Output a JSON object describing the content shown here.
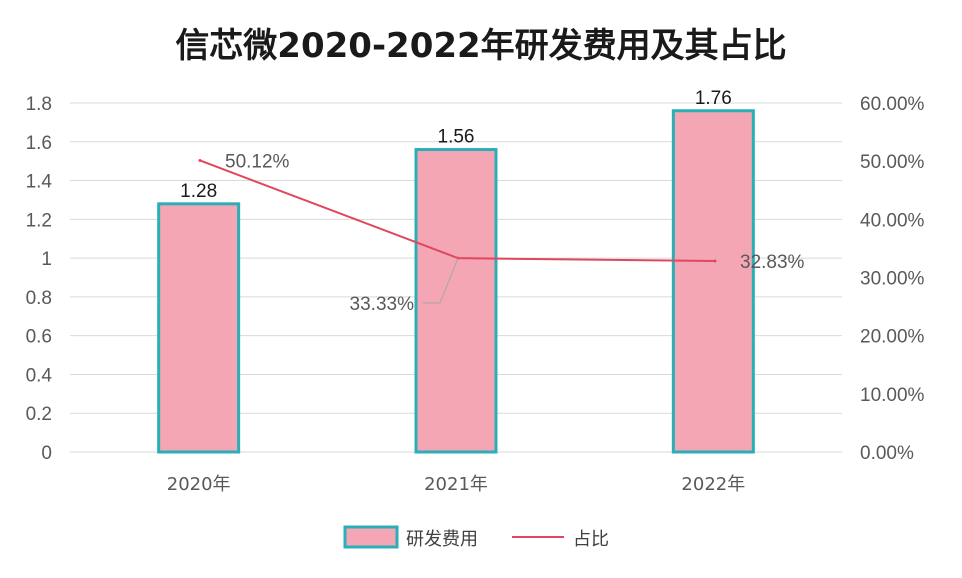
{
  "chart_data": {
    "type": "bar",
    "title": "信芯微2020-2022年研发费用及其占比",
    "categories": [
      "2020年",
      "2021年",
      "2022年"
    ],
    "series": [
      {
        "name": "研发费用",
        "type": "bar",
        "axis": "left",
        "values": [
          1.28,
          1.56,
          1.76
        ],
        "labels": [
          "1.28",
          "1.56",
          "1.76"
        ],
        "fill": "#F4A6B4",
        "stroke": "#2AAFB8"
      },
      {
        "name": "占比",
        "type": "line",
        "axis": "right",
        "values": [
          50.12,
          33.33,
          32.83
        ],
        "labels": [
          "50.12%",
          "33.33%",
          "32.83%"
        ],
        "stroke": "#E0475E"
      }
    ],
    "y_left": {
      "min": 0,
      "max": 1.8,
      "ticks": [
        "0",
        "0.2",
        "0.4",
        "0.6",
        "0.8",
        "1",
        "1.2",
        "1.4",
        "1.6",
        "1.8"
      ]
    },
    "y_right": {
      "min": 0,
      "max": 60,
      "ticks": [
        "0.00%",
        "10.00%",
        "20.00%",
        "30.00%",
        "40.00%",
        "50.00%",
        "60.00%"
      ]
    },
    "grid": true,
    "legend_position": "bottom"
  }
}
